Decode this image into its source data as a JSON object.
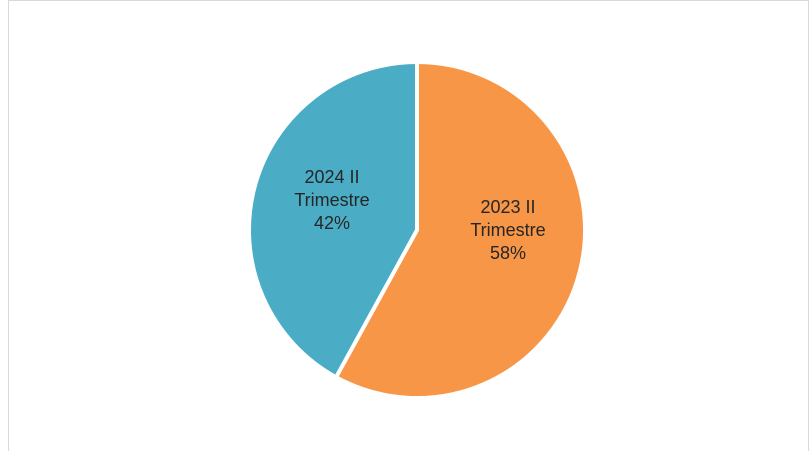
{
  "chart_data": {
    "type": "pie",
    "categories": [
      "2023 II Trimestre",
      "2024 II Trimestre"
    ],
    "values": [
      58,
      42
    ],
    "slices": [
      {
        "category": "2023 II Trimestre",
        "label_lines": [
          "2023 II",
          "Trimestre",
          "58%"
        ],
        "value": 58,
        "color": "#F79646"
      },
      {
        "category": "2024 II Trimestre",
        "label_lines": [
          "2024 II",
          "Trimestre",
          "42%"
        ],
        "value": 42,
        "color": "#4BACC6"
      }
    ],
    "start_angle_deg": 0,
    "direction": "clockwise",
    "legend": "none"
  }
}
